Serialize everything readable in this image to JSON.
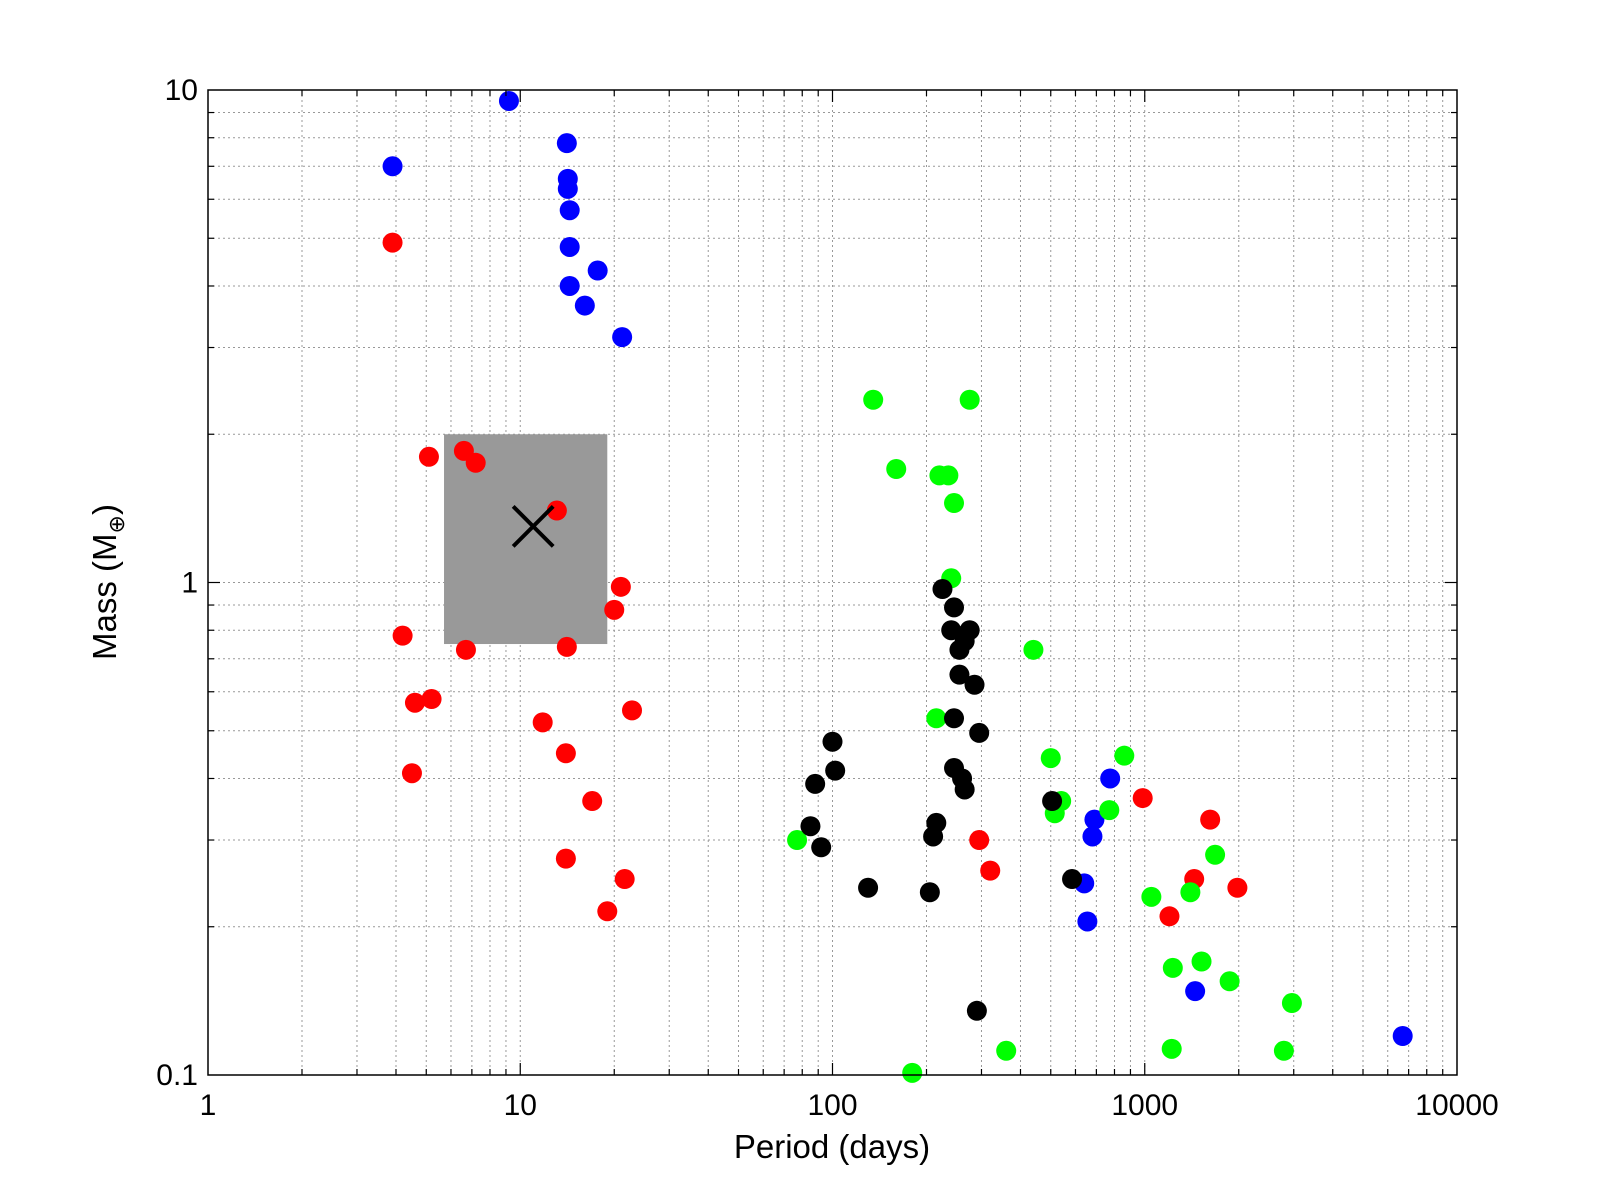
{
  "chart_data": {
    "type": "scatter",
    "title": "",
    "xlabel": "Period (days)",
    "ylabel": "Mass (M",
    "ylabel_subscript": "⊕",
    "ylabel_close": ")",
    "x_scale": "log",
    "y_scale": "log",
    "xlim": [
      1,
      10000
    ],
    "ylim": [
      0.1,
      10
    ],
    "x_ticks": [
      {
        "value": 1,
        "label": "1"
      },
      {
        "value": 10,
        "label": "10"
      },
      {
        "value": 100,
        "label": "100"
      },
      {
        "value": 1000,
        "label": "1000"
      },
      {
        "value": 10000,
        "label": "10000"
      }
    ],
    "y_ticks": [
      {
        "value": 0.1,
        "label": "0.1"
      },
      {
        "value": 1,
        "label": "1"
      },
      {
        "value": 10,
        "label": "10"
      }
    ],
    "grid": true,
    "legend": "none",
    "shaded_region": {
      "x_range": [
        5.7,
        19
      ],
      "y_range": [
        0.75,
        2.0
      ],
      "color": "#999999"
    },
    "marker_x": {
      "x": 11,
      "y": 1.3,
      "color": "#000000"
    },
    "series": [
      {
        "color": "#0000ff",
        "points": [
          [
            3.9,
            7.0
          ],
          [
            9.2,
            9.5
          ],
          [
            14.1,
            7.8
          ],
          [
            14.2,
            6.6
          ],
          [
            14.2,
            6.3
          ],
          [
            14.4,
            5.7
          ],
          [
            14.4,
            4.8
          ],
          [
            14.4,
            4.0
          ],
          [
            17.7,
            4.3
          ],
          [
            16.1,
            3.65
          ],
          [
            21.2,
            3.15
          ],
          [
            640,
            0.245
          ],
          [
            655,
            0.205
          ],
          [
            690,
            0.33
          ],
          [
            680,
            0.305
          ],
          [
            775,
            0.4
          ],
          [
            1450,
            0.148
          ],
          [
            6700,
            0.12
          ]
        ]
      },
      {
        "color": "#ff0000",
        "points": [
          [
            3.9,
            4.9
          ],
          [
            5.1,
            1.8
          ],
          [
            6.6,
            1.85
          ],
          [
            7.2,
            1.75
          ],
          [
            13.1,
            1.4
          ],
          [
            21.0,
            0.98
          ],
          [
            20.0,
            0.88
          ],
          [
            4.2,
            0.78
          ],
          [
            6.7,
            0.73
          ],
          [
            14.1,
            0.74
          ],
          [
            4.6,
            0.57
          ],
          [
            5.2,
            0.58
          ],
          [
            22.8,
            0.55
          ],
          [
            11.8,
            0.52
          ],
          [
            14.0,
            0.45
          ],
          [
            4.5,
            0.41
          ],
          [
            17.0,
            0.36
          ],
          [
            14.0,
            0.275
          ],
          [
            21.6,
            0.25
          ],
          [
            19.0,
            0.215
          ],
          [
            295,
            0.3
          ],
          [
            320,
            0.26
          ],
          [
            985,
            0.365
          ],
          [
            1620,
            0.33
          ],
          [
            1440,
            0.25
          ],
          [
            1980,
            0.24
          ],
          [
            1200,
            0.21
          ]
        ]
      },
      {
        "color": "#00ff00",
        "points": [
          [
            135,
            2.35
          ],
          [
            275,
            2.35
          ],
          [
            160,
            1.7
          ],
          [
            220,
            1.65
          ],
          [
            235,
            1.65
          ],
          [
            245,
            1.45
          ],
          [
            240,
            1.02
          ],
          [
            440,
            0.73
          ],
          [
            215,
            0.53
          ],
          [
            500,
            0.44
          ],
          [
            540,
            0.36
          ],
          [
            515,
            0.34
          ],
          [
            770,
            0.345
          ],
          [
            860,
            0.445
          ],
          [
            77,
            0.3
          ],
          [
            1680,
            0.28
          ],
          [
            1050,
            0.23
          ],
          [
            1400,
            0.235
          ],
          [
            1230,
            0.165
          ],
          [
            1520,
            0.17
          ],
          [
            1870,
            0.155
          ],
          [
            2960,
            0.14
          ],
          [
            1220,
            0.113
          ],
          [
            2790,
            0.112
          ],
          [
            360,
            0.112
          ],
          [
            180,
            0.101
          ]
        ]
      },
      {
        "color": "#000000",
        "points": [
          [
            225,
            0.97
          ],
          [
            245,
            0.89
          ],
          [
            240,
            0.8
          ],
          [
            275,
            0.8
          ],
          [
            265,
            0.76
          ],
          [
            255,
            0.73
          ],
          [
            255,
            0.65
          ],
          [
            285,
            0.62
          ],
          [
            245,
            0.53
          ],
          [
            295,
            0.495
          ],
          [
            100,
            0.475
          ],
          [
            102,
            0.415
          ],
          [
            245,
            0.42
          ],
          [
            260,
            0.4
          ],
          [
            265,
            0.38
          ],
          [
            88,
            0.39
          ],
          [
            85,
            0.32
          ],
          [
            92,
            0.29
          ],
          [
            215,
            0.325
          ],
          [
            210,
            0.305
          ],
          [
            505,
            0.36
          ],
          [
            585,
            0.25
          ],
          [
            130,
            0.24
          ],
          [
            205,
            0.235
          ],
          [
            290,
            0.135
          ]
        ]
      }
    ]
  }
}
